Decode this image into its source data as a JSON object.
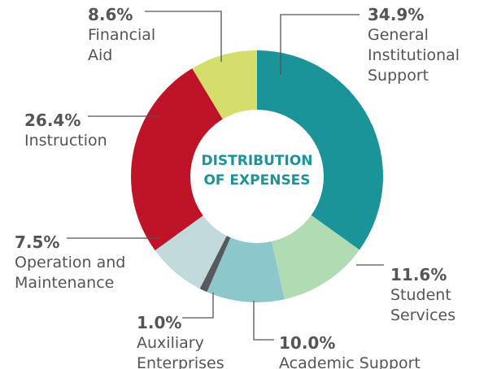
{
  "chart_data": {
    "type": "donut",
    "title": "DISTRIBUTION OF EXPENSES",
    "categories": [
      "General Institutional Support",
      "Student Services",
      "Academic Support",
      "Auxiliary Enterprises",
      "Operation and Maintenance",
      "Instruction",
      "Financial Aid"
    ],
    "values": [
      34.9,
      11.6,
      10.0,
      1.0,
      7.5,
      26.4,
      8.6
    ],
    "value_labels": [
      "34.9%",
      "11.6%",
      "10.0%",
      "1.0%",
      "7.5%",
      "26.4%",
      "8.6%"
    ],
    "colors": [
      "#1a9399",
      "#b1dbb2",
      "#8cc8cb",
      "#555a5c",
      "#c3dadd",
      "#bf1428",
      "#d3de6b"
    ]
  }
}
